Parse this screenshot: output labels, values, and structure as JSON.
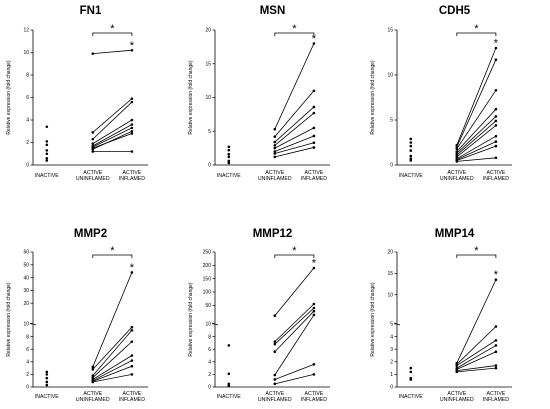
{
  "chart_data": [
    {
      "type": "scatter",
      "title": "FN1",
      "ylabel": "Relative expression (fold change)",
      "categories": [
        "INACTIVE",
        "ACTIVE UNINFLAMED",
        "ACTIVE INFLAMED"
      ],
      "yticks": [
        "0",
        "2",
        "4",
        "6",
        "8",
        "10",
        "12"
      ],
      "ylim": [
        0,
        12
      ],
      "inactive": [
        3.4,
        2.1,
        1.8,
        1.3,
        1.0,
        0.6,
        0.4
      ],
      "pairs": [
        [
          9.9,
          10.2
        ],
        [
          2.9,
          5.9
        ],
        [
          2.3,
          5.6
        ],
        [
          1.9,
          4.0
        ],
        [
          1.7,
          3.6
        ],
        [
          1.6,
          3.3
        ],
        [
          1.5,
          2.8
        ],
        [
          1.4,
          3.0
        ],
        [
          1.2,
          1.2
        ]
      ],
      "significance": "*",
      "significance_point": "*"
    },
    {
      "type": "scatter",
      "title": "MSN",
      "ylabel": "Relative expression (fold change)",
      "categories": [
        "INACTIVE",
        "ACTIVE UNINFLAMED",
        "ACTIVE INFLAMED"
      ],
      "yticks": [
        "0",
        "5",
        "10",
        "15",
        "20"
      ],
      "ylim": [
        0,
        20
      ],
      "inactive": [
        2.7,
        2.2,
        1.6,
        1.2,
        0.6,
        0.3
      ],
      "pairs": [
        [
          5.3,
          18.0
        ],
        [
          4.2,
          11.0
        ],
        [
          3.4,
          8.6
        ],
        [
          2.9,
          7.7
        ],
        [
          2.5,
          5.5
        ],
        [
          2.0,
          4.3
        ],
        [
          1.7,
          3.3
        ],
        [
          1.2,
          2.6
        ]
      ],
      "significance": "*",
      "significance_point": "*"
    },
    {
      "type": "scatter",
      "title": "CDH5",
      "ylabel": "Relative expression (fold change)",
      "categories": [
        "INACTIVE",
        "ACTIVE UNINFLAMED",
        "ACTIVE INFLAMED"
      ],
      "yticks": [
        "0",
        "5",
        "10",
        "15"
      ],
      "ylim": [
        0,
        15
      ],
      "inactive": [
        2.9,
        2.5,
        2.1,
        1.6,
        1.0,
        0.7,
        0.5
      ],
      "pairs": [
        [
          2.2,
          13.0
        ],
        [
          2.0,
          11.7
        ],
        [
          1.8,
          8.3
        ],
        [
          1.5,
          6.2
        ],
        [
          1.3,
          5.4
        ],
        [
          1.1,
          4.9
        ],
        [
          0.9,
          4.4
        ],
        [
          0.7,
          3.2
        ],
        [
          0.6,
          2.6
        ],
        [
          0.5,
          2.1
        ],
        [
          0.4,
          0.8
        ]
      ],
      "significance": "*",
      "significance_point": "*"
    },
    {
      "type": "scatter",
      "title": "MMP2",
      "ylabel": "Relative expression (fold change)",
      "categories": [
        "INACTIVE",
        "ACTIVE UNINFLAMED",
        "ACTIVE INFLAMED"
      ],
      "yticks_lower": [
        "0",
        "2",
        "4",
        "6",
        "8",
        "10"
      ],
      "yticks_upper": [
        "10",
        "20",
        "30",
        "40",
        "50",
        "60"
      ],
      "ylim": [
        0,
        60
      ],
      "axis_break": 10,
      "inactive": [
        2.4,
        2.0,
        1.4,
        0.8,
        0.3
      ],
      "pairs": [
        [
          3.2,
          44.0
        ],
        [
          2.8,
          9.5
        ],
        [
          1.8,
          9.0
        ],
        [
          1.5,
          7.2
        ],
        [
          1.2,
          5.0
        ],
        [
          1.0,
          4.2
        ],
        [
          0.9,
          3.3
        ],
        [
          0.8,
          2.0
        ]
      ],
      "significance": "*",
      "significance_point": "*"
    },
    {
      "type": "scatter",
      "title": "MMP12",
      "ylabel": "Relative expression (fold change)",
      "categories": [
        "INACTIVE",
        "ACTIVE UNINFLAMED",
        "ACTIVE INFLAMED"
      ],
      "yticks_lower": [
        "0",
        "2",
        "4",
        "6",
        "8",
        "10"
      ],
      "yticks_upper": [
        "10",
        "50",
        "100",
        "150",
        "200",
        "250"
      ],
      "ylim": [
        0,
        250
      ],
      "axis_break": 10,
      "inactive": [
        6.6,
        2.1,
        0.5,
        0.2
      ],
      "pairs": [
        [
          11.0,
          190.0
        ],
        [
          7.2,
          55.0
        ],
        [
          6.8,
          40.0
        ],
        [
          5.6,
          28.0
        ],
        [
          1.9,
          14.0
        ],
        [
          1.2,
          3.6
        ],
        [
          0.5,
          2.0
        ]
      ],
      "significance": "*",
      "significance_point": "*"
    },
    {
      "type": "scatter",
      "title": "MMP14",
      "ylabel": "Relative expression (fold change)",
      "categories": [
        "INACTIVE",
        "ACTIVE UNINFLAMED",
        "ACTIVE INFLAMED"
      ],
      "yticks_lower": [
        "0",
        "1",
        "2",
        "3",
        "4",
        "5"
      ],
      "yticks_upper": [
        "5",
        "10",
        "15",
        "20"
      ],
      "ylim": [
        0,
        20
      ],
      "axis_break": 5,
      "inactive": [
        1.5,
        1.2,
        0.7,
        0.6
      ],
      "pairs": [
        [
          1.9,
          13.5
        ],
        [
          1.8,
          4.8
        ],
        [
          1.7,
          3.7
        ],
        [
          1.5,
          3.3
        ],
        [
          1.4,
          2.8
        ],
        [
          1.3,
          1.7
        ],
        [
          1.2,
          1.5
        ]
      ],
      "significance": "*",
      "significance_point": "*"
    }
  ]
}
